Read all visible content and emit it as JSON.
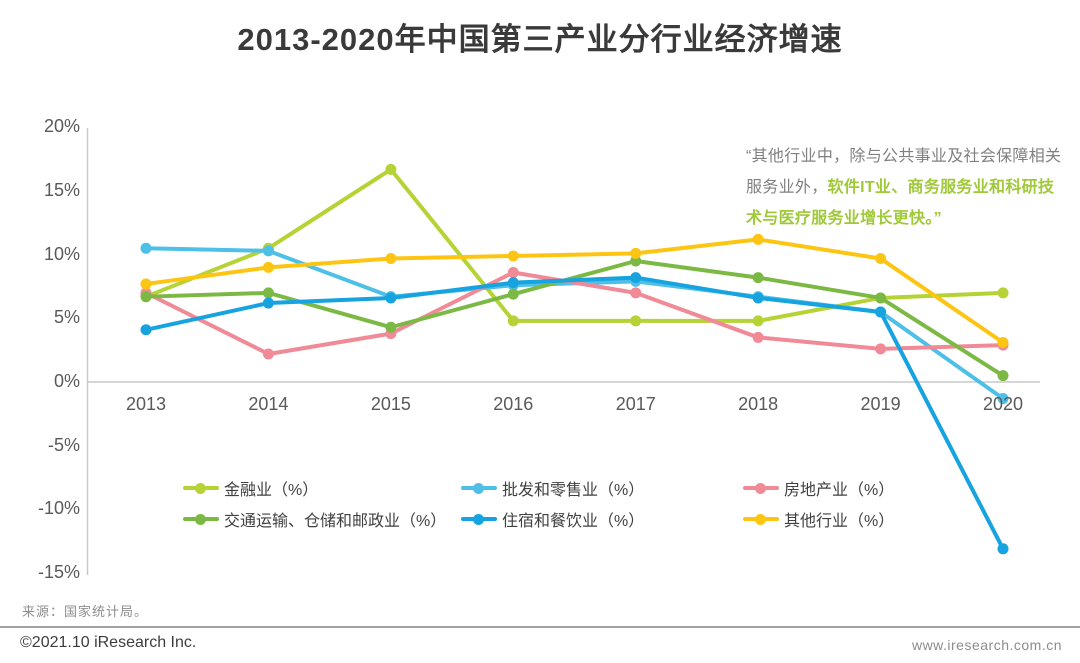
{
  "annotation": {
    "gray_text": "“其他行业中，除与公共事业及社会保障相关服务业外，",
    "highlight_text": "软件IT业、商务服务业和科研技术与医疗服务业增长更快。”",
    "highlight_color": "#a0c93a"
  },
  "chart_data": {
    "type": "line",
    "title": "2013-2020年中国第三产业分行业经济增速",
    "x": [
      "2013",
      "2014",
      "2015",
      "2016",
      "2017",
      "2018",
      "2019",
      "2020"
    ],
    "series": [
      {
        "name": "金融业（%）",
        "color": "#b5d334",
        "values": [
          6.7,
          10.5,
          16.7,
          4.8,
          4.8,
          4.8,
          6.6,
          7.0
        ]
      },
      {
        "name": "批发和零售业（%）",
        "color": "#4ec0e8",
        "values": [
          10.5,
          10.3,
          6.7,
          7.6,
          7.9,
          6.7,
          5.5,
          -1.3
        ]
      },
      {
        "name": "房地产业（%）",
        "color": "#f08a96",
        "values": [
          7.0,
          2.2,
          3.8,
          8.6,
          7.0,
          3.5,
          2.6,
          2.9
        ]
      },
      {
        "name": "交通运输、仓储和邮政业（%）",
        "color": "#7cb944",
        "values": [
          6.7,
          7.0,
          4.3,
          6.9,
          9.5,
          8.2,
          6.6,
          0.5
        ]
      },
      {
        "name": "住宿和餐饮业（%）",
        "color": "#16a3e0",
        "values": [
          4.1,
          6.2,
          6.6,
          7.8,
          8.2,
          6.6,
          5.5,
          -13.1
        ]
      },
      {
        "name": "其他行业（%）",
        "color": "#fdc513",
        "values": [
          7.7,
          9.0,
          9.7,
          9.9,
          10.1,
          11.2,
          9.7,
          3.1
        ]
      }
    ],
    "xlabel": "",
    "ylabel": "",
    "ylim": [
      -15,
      20
    ],
    "ytick_step": 5,
    "ytick_suffix": "%",
    "grid": false,
    "legend_position": "bottom",
    "axis_color": "#c9c9c9"
  },
  "footer": {
    "source": "来源：国家统计局。",
    "copyright": "©2021.10 iResearch Inc.",
    "url": "www.iresearch.com.cn"
  }
}
